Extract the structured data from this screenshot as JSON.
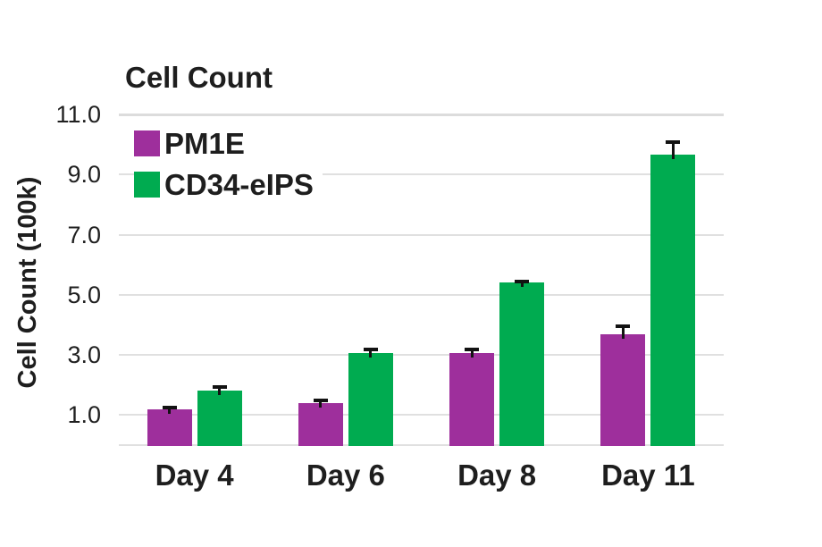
{
  "chart_data": {
    "type": "bar",
    "title": "Cell Count",
    "xlabel": "",
    "ylabel": "Cell Count (100k)",
    "categories": [
      "Day 4",
      "Day 6",
      "Day 8",
      "Day 11"
    ],
    "series": [
      {
        "name": "PM1E",
        "color": "#9E2F9C",
        "values": [
          1.2,
          1.4,
          3.05,
          3.7
        ],
        "errors_up": [
          0.1,
          0.15,
          0.2,
          0.3
        ]
      },
      {
        "name": "CD34-eIPS",
        "color": "#00AB50",
        "values": [
          1.8,
          3.05,
          5.4,
          9.65
        ],
        "errors_up": [
          0.2,
          0.2,
          0.1,
          0.5
        ]
      }
    ],
    "y_ticks": [
      1.0,
      3.0,
      5.0,
      7.0,
      9.0,
      11.0
    ],
    "y_tick_labels": [
      "1.0",
      "3.0",
      "5.0",
      "7.0",
      "9.0",
      "11.0"
    ],
    "ylim": [
      0,
      11
    ],
    "grid": true,
    "legend_position": "top-left-inside",
    "error_bars": "upper",
    "colors": {
      "grid": "#e0e0e0",
      "grid_top": "#dcdcdc",
      "text": "#1e1e1e"
    }
  }
}
